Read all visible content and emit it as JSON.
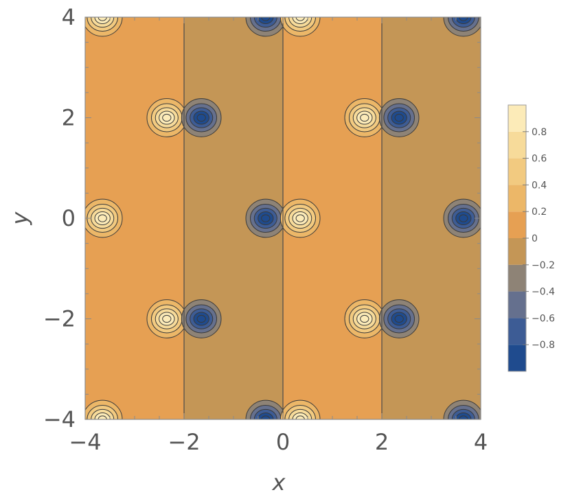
{
  "chart_data": {
    "type": "contour",
    "xlabel": "x",
    "ylabel": "y",
    "xlim": [
      -4,
      4
    ],
    "ylim": [
      -4,
      4
    ],
    "x_ticks": [
      -4,
      -2,
      0,
      2,
      4
    ],
    "y_ticks": [
      -4,
      -2,
      0,
      2,
      4
    ],
    "x_tick_labels": [
      "−4",
      "−2",
      "0",
      "2",
      "4"
    ],
    "y_tick_labels": [
      "−4",
      "−2",
      "0",
      "2",
      "4"
    ],
    "grid": false,
    "colorbar": {
      "placement": "right",
      "range": [
        -1,
        1
      ],
      "levels": [
        -1,
        -0.8,
        -0.6,
        -0.4,
        -0.2,
        0,
        0.2,
        0.4,
        0.6,
        0.8,
        1
      ],
      "tick_values": [
        0.8,
        0.6,
        0.4,
        0.2,
        0,
        -0.2,
        -0.4,
        -0.6,
        -0.8
      ],
      "tick_labels": [
        "0.8",
        "0.6",
        "0.4",
        "0.2",
        "0",
        "−0.2",
        "−0.4",
        "−0.6",
        "−0.8"
      ],
      "band_colors": [
        "#1f4b8e",
        "#3d5c95",
        "#65708e",
        "#8e8376",
        "#c49656",
        "#e6a053",
        "#ecb768",
        "#f2ca80",
        "#f7db9a",
        "#fcebb8"
      ]
    },
    "boundary_lines_x": [
      -2,
      0,
      2
    ],
    "plateau_values": [
      {
        "x_range": [
          -4,
          -2
        ],
        "value": 0.1
      },
      {
        "x_range": [
          -2,
          0
        ],
        "value": -0.1
      },
      {
        "x_range": [
          0,
          2
        ],
        "value": 0.1
      },
      {
        "x_range": [
          2,
          4
        ],
        "value": -0.1
      }
    ],
    "extrema": [
      {
        "x": -3.65,
        "y": 4,
        "value": 1
      },
      {
        "x": -0.35,
        "y": 4,
        "value": -1
      },
      {
        "x": 0.35,
        "y": 4,
        "value": 1
      },
      {
        "x": 3.65,
        "y": 4,
        "value": -1
      },
      {
        "x": -2.35,
        "y": 2,
        "value": 1
      },
      {
        "x": -1.65,
        "y": 2,
        "value": -1
      },
      {
        "x": 1.65,
        "y": 2,
        "value": 1
      },
      {
        "x": 2.35,
        "y": 2,
        "value": -1
      },
      {
        "x": -3.65,
        "y": 0,
        "value": 1
      },
      {
        "x": -0.35,
        "y": 0,
        "value": -1
      },
      {
        "x": 0.35,
        "y": 0,
        "value": 1
      },
      {
        "x": 3.65,
        "y": 0,
        "value": -1
      },
      {
        "x": -2.35,
        "y": -2,
        "value": 1
      },
      {
        "x": -1.65,
        "y": -2,
        "value": -1
      },
      {
        "x": 1.65,
        "y": -2,
        "value": 1
      },
      {
        "x": 2.35,
        "y": -2,
        "value": -1
      },
      {
        "x": -3.65,
        "y": -4,
        "value": 1
      },
      {
        "x": -0.35,
        "y": -4,
        "value": -1
      },
      {
        "x": 0.35,
        "y": -4,
        "value": 1
      },
      {
        "x": 3.65,
        "y": -4,
        "value": -1
      }
    ]
  }
}
